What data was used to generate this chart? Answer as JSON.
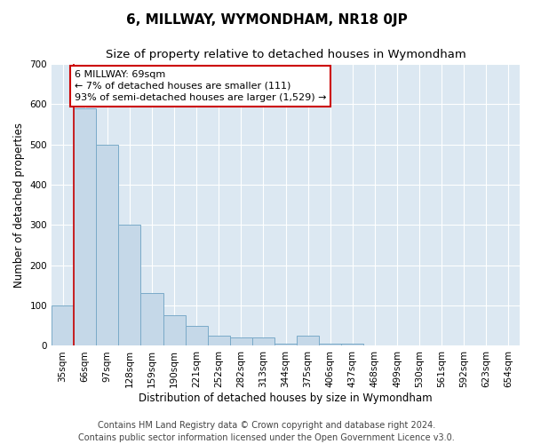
{
  "title": "6, MILLWAY, WYMONDHAM, NR18 0JP",
  "subtitle": "Size of property relative to detached houses in Wymondham",
  "xlabel": "Distribution of detached houses by size in Wymondham",
  "ylabel": "Number of detached properties",
  "categories": [
    "35sqm",
    "66sqm",
    "97sqm",
    "128sqm",
    "159sqm",
    "190sqm",
    "221sqm",
    "252sqm",
    "282sqm",
    "313sqm",
    "344sqm",
    "375sqm",
    "406sqm",
    "437sqm",
    "468sqm",
    "499sqm",
    "530sqm",
    "561sqm",
    "592sqm",
    "623sqm",
    "654sqm"
  ],
  "values": [
    100,
    590,
    500,
    300,
    130,
    75,
    50,
    25,
    20,
    20,
    5,
    25,
    5,
    5,
    2,
    0,
    0,
    0,
    0,
    0,
    0
  ],
  "bar_color": "#c5d8e8",
  "bar_edge_color": "#7aaac8",
  "annotation_text": "6 MILLWAY: 69sqm\n← 7% of detached houses are smaller (111)\n93% of semi-detached houses are larger (1,529) →",
  "annotation_box_color": "#ffffff",
  "annotation_box_edge": "#cc0000",
  "red_line_x": 0.5,
  "ylim": [
    0,
    700
  ],
  "yticks": [
    0,
    100,
    200,
    300,
    400,
    500,
    600,
    700
  ],
  "plot_bg_color": "#dce8f2",
  "grid_color": "#ffffff",
  "footer_line1": "Contains HM Land Registry data © Crown copyright and database right 2024.",
  "footer_line2": "Contains public sector information licensed under the Open Government Licence v3.0.",
  "title_fontsize": 11,
  "subtitle_fontsize": 9.5,
  "axis_label_fontsize": 8.5,
  "tick_fontsize": 7.5,
  "annotation_fontsize": 8,
  "footer_fontsize": 7
}
